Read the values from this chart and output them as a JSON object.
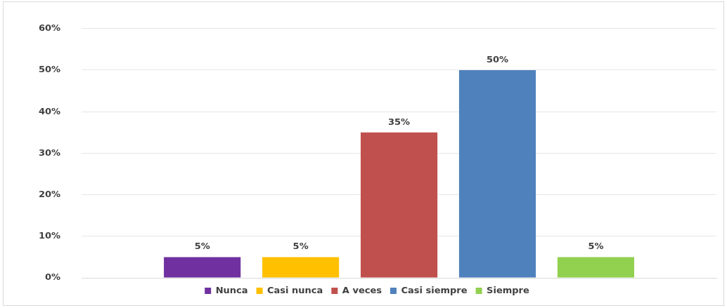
{
  "chart_data": {
    "type": "bar",
    "categories": [
      null
    ],
    "series": [
      {
        "name": "Nunca",
        "color": "#7030a0",
        "values": [
          5
        ],
        "value_labels": [
          "5%"
        ]
      },
      {
        "name": "Casi nunca",
        "color": "#ffc000",
        "values": [
          5
        ],
        "value_labels": [
          "5%"
        ]
      },
      {
        "name": "A veces",
        "color": "#c0504d",
        "values": [
          35
        ],
        "value_labels": [
          "35%"
        ]
      },
      {
        "name": "Casi siempre",
        "color": "#4f81bd",
        "values": [
          50
        ],
        "value_labels": [
          "50%"
        ]
      },
      {
        "name": "Siempre",
        "color": "#92d050",
        "values": [
          5
        ],
        "value_labels": [
          "5%"
        ]
      }
    ],
    "ylim": [
      0,
      60
    ],
    "yticks": [
      {
        "value": 0,
        "label": "0%"
      },
      {
        "value": 10,
        "label": "10%"
      },
      {
        "value": 20,
        "label": "20%"
      },
      {
        "value": 30,
        "label": "30%"
      },
      {
        "value": 40,
        "label": "40%"
      },
      {
        "value": 50,
        "label": "50%"
      },
      {
        "value": 60,
        "label": "60%"
      }
    ],
    "grid": "y",
    "legend": "bottom"
  }
}
